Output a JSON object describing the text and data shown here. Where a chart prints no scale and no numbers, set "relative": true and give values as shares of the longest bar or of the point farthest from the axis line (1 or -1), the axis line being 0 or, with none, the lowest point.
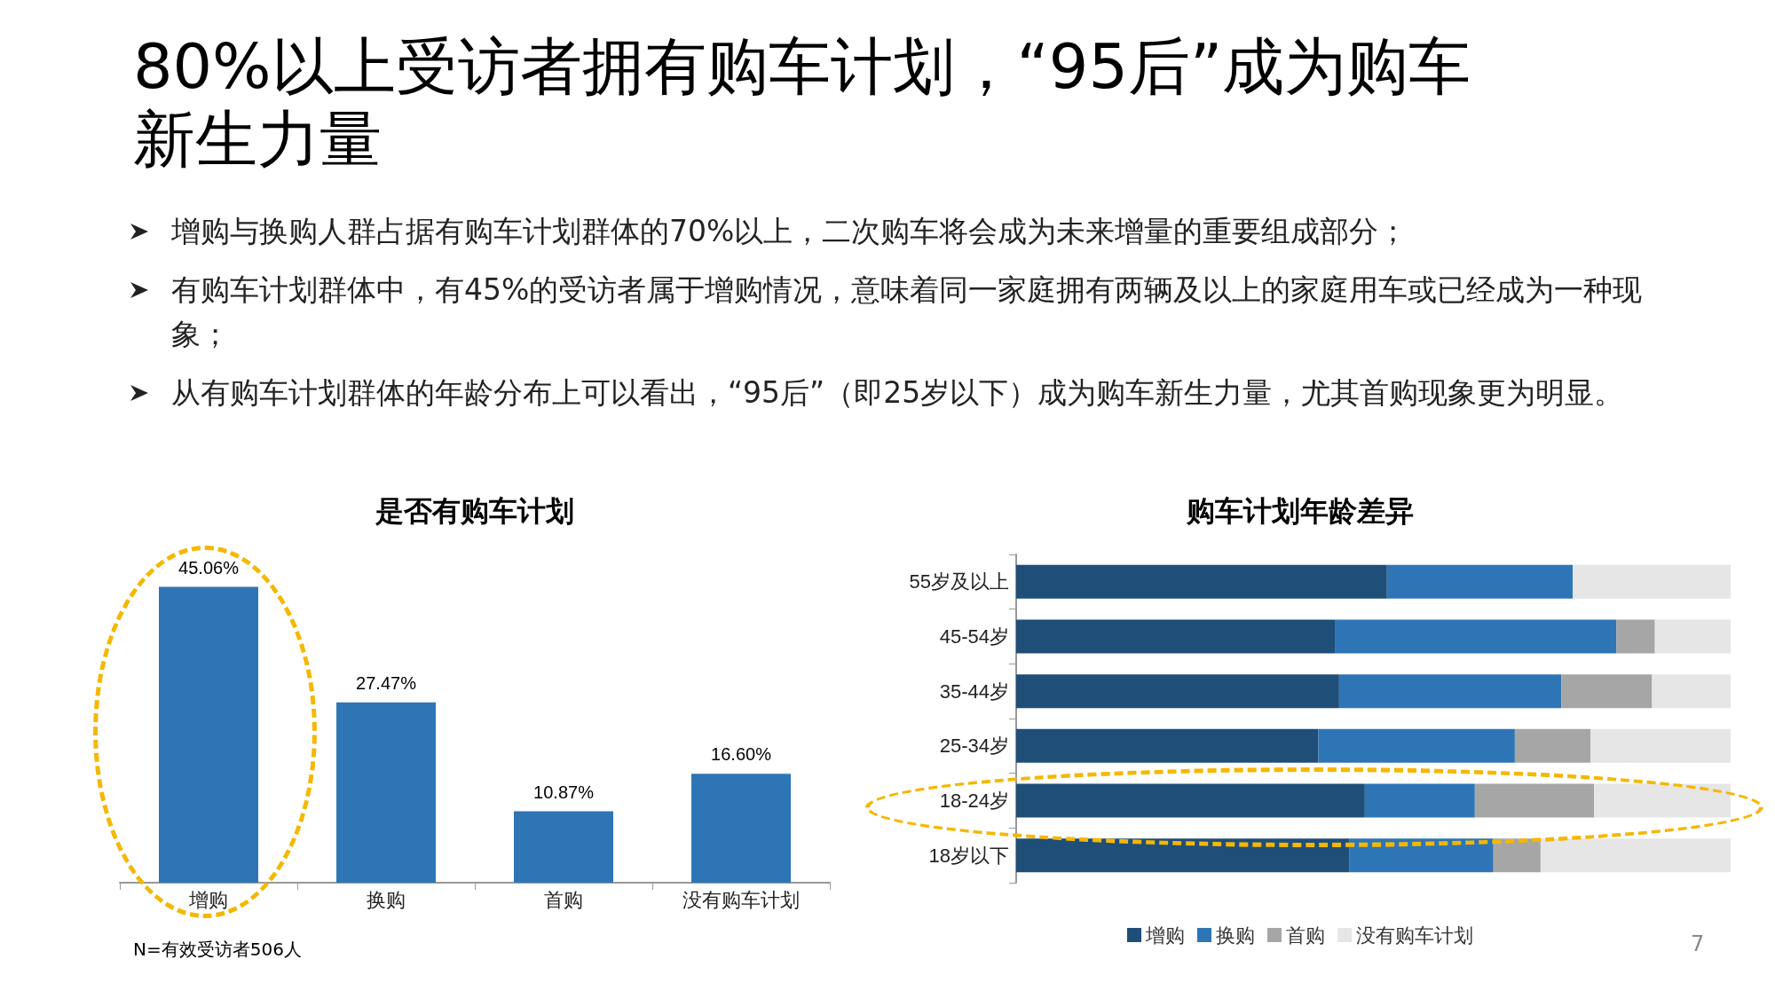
{
  "chart_data": [
    {
      "type": "other",
      "title": "80%以上受访者拥有购车计划，“95后”成为购车新生力量",
      "annotations": [
        "增购与换购人群占据有购车计划群体的70%以上，二次购车将会成为未来增量的重要组成部分；",
        "有购车计划群体中，有45%的受访者属于增购情况，意味着同一家庭拥有两辆及以上的家庭用车或已经成为一种现象；",
        "从有购车计划群体的年龄分布上可以看出，“95后”（即25岁以下）成为购车新生力量，尤其首购现象更为明显。",
        "7"
      ]
    },
    {
      "type": "bar",
      "title": "是否有购车计划",
      "categories": [
        "增购",
        "换购",
        "首购",
        "没有购车计划"
      ],
      "values": [
        45.06,
        27.47,
        10.87,
        16.6
      ],
      "color": "#2e75b6",
      "value_labels": [
        "45.06%",
        "27.47%",
        "10.87%",
        "16.60%"
      ],
      "annotations": [
        "N=有效受访者506人"
      ],
      "legend": false
    },
    {
      "type": "bar",
      "title": "购车计划年龄差异",
      "orientation": "horizontal",
      "stacked": true,
      "relative": true,
      "categories": [
        "55岁及以上",
        "45-54岁",
        "35-44岁",
        "25-34岁",
        "18-24岁",
        "18岁以下"
      ],
      "series": [
        {
          "name": "增购",
          "color": "#1f4e79",
          "values": [
            0.519,
            0.446,
            0.452,
            0.423,
            0.488,
            0.466
          ]
        },
        {
          "name": "换购",
          "color": "#2e75b6",
          "values": [
            0.26,
            0.394,
            0.311,
            0.275,
            0.154,
            0.202
          ]
        },
        {
          "name": "首购",
          "color": "#a6a6a6",
          "values": [
            0,
            0.054,
            0.127,
            0.106,
            0.167,
            0.066
          ]
        },
        {
          "name": "没有购车计划",
          "color": "#e7e6e6",
          "values": [
            0.221,
            0.106,
            0.11,
            0.196,
            0.191,
            0.266
          ]
        }
      ],
      "legend": "bottom"
    }
  ]
}
